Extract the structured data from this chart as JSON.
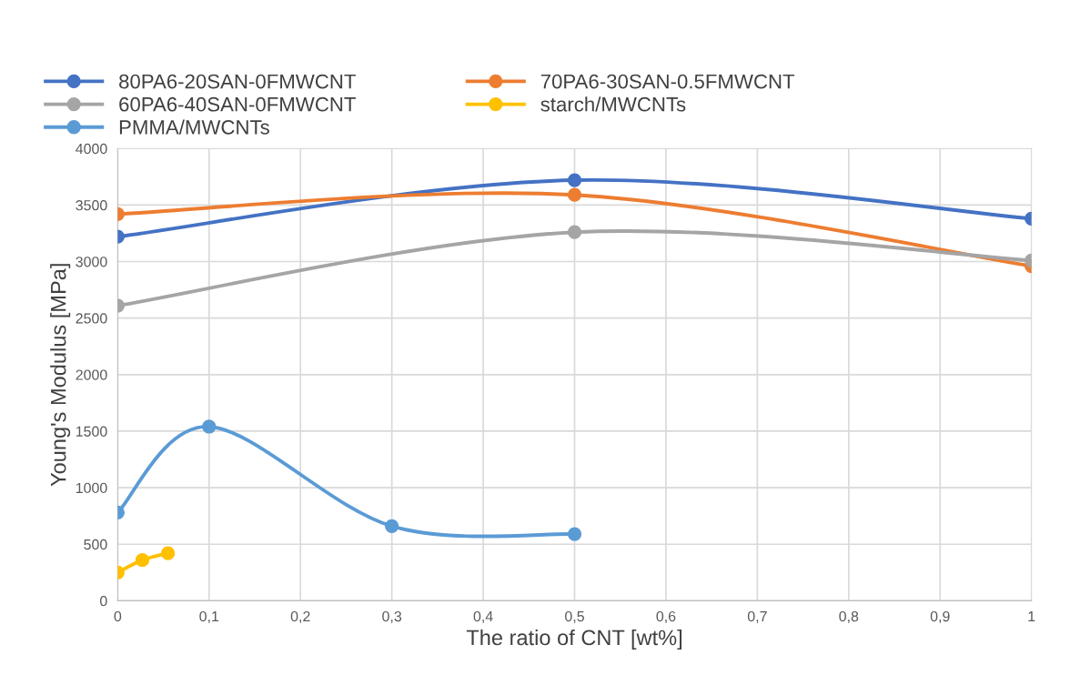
{
  "chart_data": {
    "type": "line",
    "xlabel": "The ratio of CNT [wt%]",
    "ylabel": "Young's Modulus [MPa]",
    "xlim": [
      0,
      1
    ],
    "xticks": [
      0,
      {
        "value": 0.1,
        "label": "0,1"
      },
      {
        "value": 0.2,
        "label": "0,2"
      },
      {
        "value": 0.3,
        "label": "0,3"
      },
      {
        "value": 0.4,
        "label": "0,4"
      },
      {
        "value": 0.5,
        "label": "0,5"
      },
      {
        "value": 0.6,
        "label": "0,6"
      },
      {
        "value": 0.7,
        "label": "0,7"
      },
      {
        "value": 0.8,
        "label": "0,8"
      },
      {
        "value": 0.9,
        "label": "0,9"
      },
      1
    ],
    "ylim": [
      0,
      4000
    ],
    "yticks": [
      0,
      500,
      1000,
      1500,
      2000,
      2500,
      3000,
      3500,
      4000
    ],
    "grid": true,
    "legend": "top",
    "marker": "circle",
    "line_style": "solid",
    "series": [
      {
        "name": "80PA6-20SAN-0FMWCNT",
        "color": "#4472c4",
        "x": [
          0,
          0.5,
          1
        ],
        "values": [
          3220,
          3720,
          3380
        ]
      },
      {
        "name": "70PA6-30SAN-0.5FMWCNT",
        "color": "#ed7d31",
        "x": [
          0,
          0.5,
          1
        ],
        "values": [
          3420,
          3590,
          2960
        ]
      },
      {
        "name": "60PA6-40SAN-0FMWCNT",
        "color": "#a5a5a5",
        "x": [
          0,
          0.5,
          1
        ],
        "values": [
          2610,
          3260,
          3010
        ]
      },
      {
        "name": "starch/MWCNTs",
        "color": "#ffc000",
        "x": [
          0,
          0.027,
          0.055
        ],
        "values": [
          250,
          360,
          420
        ]
      },
      {
        "name": "PMMA/MWCNTs",
        "color": "#5b9bd5",
        "x": [
          0,
          0.1,
          0.3,
          0.5
        ],
        "values": [
          780,
          1540,
          660,
          590
        ]
      }
    ]
  }
}
